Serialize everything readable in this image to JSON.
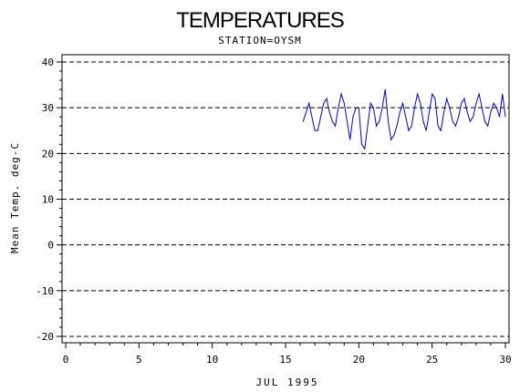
{
  "chart_data": {
    "type": "line",
    "title": "TEMPERATURES",
    "subtitle": "STATION=OYSM",
    "xlabel": "JUL 1995",
    "ylabel": "Mean Temp. deg-C",
    "xlim": [
      0,
      30
    ],
    "ylim": [
      -20,
      40
    ],
    "x_ticks": [
      "0",
      "5",
      "10",
      "15",
      "20",
      "25",
      "30"
    ],
    "y_ticks": [
      "40",
      "30",
      "20",
      "10",
      "0",
      "-10",
      "-20"
    ],
    "gridlines_y": [
      40,
      30,
      20,
      10,
      0,
      -10,
      -20
    ],
    "grid": "horizontal dashed",
    "series": [
      {
        "color": "#0000cc",
        "x": [
          16.2,
          16.4,
          16.6,
          16.8,
          17.0,
          17.2,
          17.4,
          17.6,
          17.8,
          18.0,
          18.2,
          18.4,
          18.6,
          18.8,
          19.0,
          19.2,
          19.4,
          19.6,
          19.8,
          20.0,
          20.2,
          20.4,
          20.6,
          20.8,
          21.0,
          21.2,
          21.4,
          21.6,
          21.8,
          22.0,
          22.2,
          22.4,
          22.6,
          22.8,
          23.0,
          23.2,
          23.4,
          23.6,
          23.8,
          24.0,
          24.2,
          24.4,
          24.6,
          24.8,
          25.0,
          25.2,
          25.4,
          25.6,
          25.8,
          26.0,
          26.2,
          26.4,
          26.6,
          26.8,
          27.0,
          27.2,
          27.4,
          27.6,
          27.8,
          28.0,
          28.2,
          28.4,
          28.6,
          28.8,
          29.0,
          29.2,
          29.4,
          29.6,
          29.8,
          30.0
        ],
        "y": [
          27,
          29,
          31,
          28,
          25,
          25,
          28,
          31,
          32,
          29,
          27,
          26,
          30,
          33,
          31,
          27,
          23,
          28,
          30,
          30,
          22,
          21,
          26,
          31,
          30,
          26,
          27,
          30,
          34,
          27,
          23,
          24,
          26,
          29,
          31,
          28,
          25,
          26,
          30,
          33,
          31,
          27,
          25,
          29,
          33,
          32,
          26,
          25,
          29,
          32,
          30,
          27,
          26,
          28,
          31,
          32,
          29,
          27,
          28,
          31,
          33,
          30,
          27,
          26,
          29,
          31,
          30,
          28,
          33,
          28
        ]
      }
    ]
  }
}
